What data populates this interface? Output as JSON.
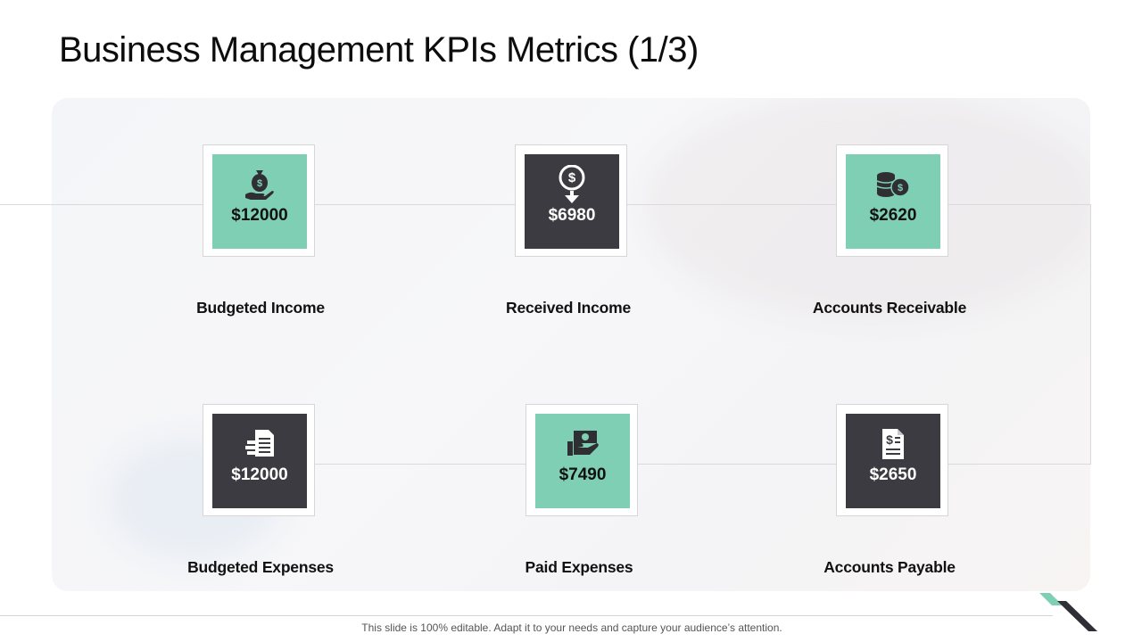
{
  "slide": {
    "title": "Business Management KPIs Metrics (1/3)",
    "footer": "This slide is 100% editable. Adapt it to your needs and capture your audience’s attention."
  },
  "colors": {
    "teal": "#7fcfb4",
    "dark": "#3b3b41",
    "accent_corner_teal": "#7fcfb4",
    "accent_corner_dark": "#2f2f35"
  },
  "kpis": [
    {
      "label": "Budgeted Income",
      "value": "$12000",
      "icon": "money-bag-hand-icon",
      "style": "teal"
    },
    {
      "label": "Received Income",
      "value": "$6980",
      "icon": "coin-down-arrow-icon",
      "style": "dark"
    },
    {
      "label": "Accounts Receivable",
      "value": "$2620",
      "icon": "coins-stack-icon",
      "style": "teal"
    },
    {
      "label": "Budgeted Expenses",
      "value": "$12000",
      "icon": "document-stack-icon",
      "style": "dark"
    },
    {
      "label": "Paid Expenses",
      "value": "$7490",
      "icon": "cash-hand-icon",
      "style": "teal"
    },
    {
      "label": "Accounts Payable",
      "value": "$2650",
      "icon": "invoice-dollar-icon",
      "style": "dark"
    }
  ]
}
